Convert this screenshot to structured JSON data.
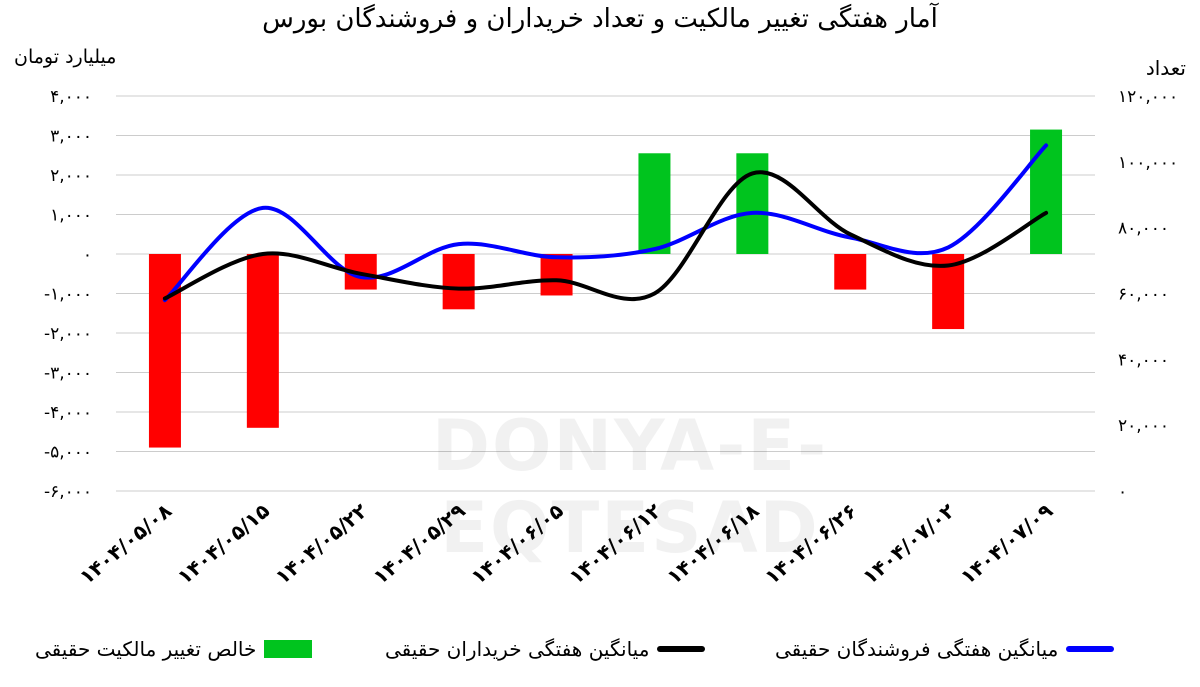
{
  "title": "آمار هفتگی تغییر مالکیت و تعداد خریداران و فروشندگان بورس",
  "watermark": "DONYA-E-EQTESAD",
  "colors": {
    "bar_positive": "#00c41e",
    "bar_negative": "#ff0000",
    "buyers_line": "#000000",
    "sellers_line": "#0000ff",
    "grid": "#cccccc"
  },
  "chart_data": {
    "type": "bar+line",
    "categories": [
      "۱۴۰۴/۰۵/۰۸",
      "۱۴۰۴/۰۵/۱۵",
      "۱۴۰۴/۰۵/۲۲",
      "۱۴۰۴/۰۵/۲۹",
      "۱۴۰۴/۰۶/۰۵",
      "۱۴۰۴/۰۶/۱۲",
      "۱۴۰۴/۰۶/۱۸",
      "۱۴۰۴/۰۶/۲۶",
      "۱۴۰۴/۰۷/۰۲",
      "۱۴۰۴/۰۷/۰۹"
    ],
    "left_axis": {
      "label": "میلیارد تومان",
      "ylim": [
        -6000,
        4000
      ],
      "ticks": [
        4000,
        3000,
        2000,
        1000,
        0,
        -1000,
        -2000,
        -3000,
        -4000,
        -5000,
        -6000
      ],
      "tick_labels": [
        "۴,۰۰۰",
        "۳,۰۰۰",
        "۲,۰۰۰",
        "۱,۰۰۰",
        "۰",
        "-۱,۰۰۰",
        "-۲,۰۰۰",
        "-۳,۰۰۰",
        "-۴,۰۰۰",
        "-۵,۰۰۰",
        "-۶,۰۰۰"
      ]
    },
    "right_axis": {
      "label": "تعداد",
      "ylim": [
        0,
        120000
      ],
      "ticks": [
        120000,
        100000,
        80000,
        60000,
        40000,
        20000,
        0
      ],
      "tick_labels": [
        "۱۲۰,۰۰۰",
        "۱۰۰,۰۰۰",
        "۸۰,۰۰۰",
        "۶۰,۰۰۰",
        "۴۰,۰۰۰",
        "۲۰,۰۰۰",
        "۰"
      ]
    },
    "grid": true,
    "legend_position": "bottom",
    "series": [
      {
        "name": "خالص تغییر مالکیت حقیقی",
        "type": "bar",
        "axis": "left",
        "values": [
          -4900,
          -4400,
          -900,
          -1400,
          -1050,
          2550,
          2550,
          -900,
          -1900,
          3150
        ]
      },
      {
        "name": "میانگین هفتگی خریداران حقیقی",
        "type": "line",
        "axis": "right",
        "values": [
          58500,
          72000,
          66000,
          61500,
          64000,
          60000,
          96500,
          78000,
          68500,
          84500
        ]
      },
      {
        "name": "میانگین هفتگی فروشندگان حقیقی",
        "type": "line",
        "axis": "right",
        "values": [
          58000,
          86000,
          65000,
          75000,
          71000,
          73500,
          84500,
          77000,
          74000,
          105000
        ]
      }
    ]
  }
}
